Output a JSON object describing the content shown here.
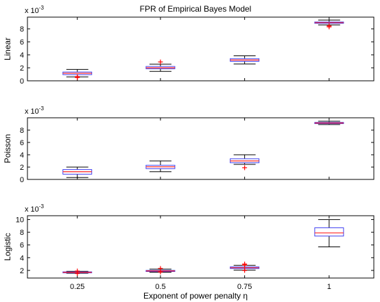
{
  "figure": {
    "title": "FPR of Empirical Bayes Model",
    "xlabel": "Exponent of power penalty η"
  },
  "chart_data": [
    {
      "type": "box",
      "title": "FPR of Empirical Bayes Model",
      "ylabel": "Linear",
      "scale_label": "x 10",
      "scale_exponent": "-3",
      "categories": [
        "0.25",
        "0.5",
        "0.75",
        "1"
      ],
      "ylim": [
        0,
        9.8
      ],
      "yticks": [
        0,
        2,
        4,
        6,
        8
      ],
      "show_xtick_labels": false,
      "boxes": [
        {
          "whisker_low": 0.6,
          "q1": 0.95,
          "median": 1.15,
          "q3": 1.35,
          "whisker_high": 1.75,
          "outliers": [
            0.5,
            0.65
          ]
        },
        {
          "whisker_low": 1.45,
          "q1": 1.85,
          "median": 2.0,
          "q3": 2.2,
          "whisker_high": 2.55,
          "outliers": [
            2.9
          ]
        },
        {
          "whisker_low": 2.6,
          "q1": 3.0,
          "median": 3.2,
          "q3": 3.4,
          "whisker_high": 3.85,
          "outliers": []
        },
        {
          "whisker_low": 8.6,
          "q1": 8.85,
          "median": 8.95,
          "q3": 9.05,
          "whisker_high": 9.35,
          "outliers": [
            8.3,
            8.45
          ]
        }
      ]
    },
    {
      "type": "box",
      "title": "",
      "ylabel": "Poisson",
      "scale_label": "x 10",
      "scale_exponent": "-3",
      "categories": [
        "0.25",
        "0.5",
        "0.75",
        "1"
      ],
      "ylim": [
        0,
        10
      ],
      "yticks": [
        0,
        2,
        4,
        6,
        8
      ],
      "show_xtick_labels": false,
      "boxes": [
        {
          "whisker_low": 0.3,
          "q1": 0.85,
          "median": 1.25,
          "q3": 1.6,
          "whisker_high": 2.0,
          "outliers": []
        },
        {
          "whisker_low": 1.25,
          "q1": 1.75,
          "median": 2.05,
          "q3": 2.3,
          "whisker_high": 3.0,
          "outliers": []
        },
        {
          "whisker_low": 2.45,
          "q1": 2.7,
          "median": 3.0,
          "q3": 3.35,
          "whisker_high": 4.0,
          "outliers": [
            1.9
          ]
        },
        {
          "whisker_low": 8.9,
          "q1": 9.05,
          "median": 9.15,
          "q3": 9.25,
          "whisker_high": 9.45,
          "outliers": []
        }
      ]
    },
    {
      "type": "box",
      "title": "",
      "ylabel": "Logistic",
      "scale_label": "x 10",
      "scale_exponent": "-3",
      "categories": [
        "0.25",
        "0.5",
        "0.75",
        "1"
      ],
      "ylim": [
        0.8,
        10.6
      ],
      "yticks": [
        2,
        4,
        6,
        8,
        10
      ],
      "show_xtick_labels": true,
      "boxes": [
        {
          "whisker_low": 1.55,
          "q1": 1.62,
          "median": 1.7,
          "q3": 1.77,
          "whisker_high": 1.85,
          "outliers": [
            1.5,
            1.9
          ]
        },
        {
          "whisker_low": 1.7,
          "q1": 1.82,
          "median": 1.92,
          "q3": 2.0,
          "whisker_high": 2.2,
          "outliers": [
            1.75,
            2.3
          ]
        },
        {
          "whisker_low": 2.05,
          "q1": 2.3,
          "median": 2.42,
          "q3": 2.55,
          "whisker_high": 2.8,
          "outliers": [
            2.0,
            2.85,
            3.0
          ]
        },
        {
          "whisker_low": 5.7,
          "q1": 7.4,
          "median": 7.9,
          "q3": 8.7,
          "whisker_high": 10.0,
          "outliers": []
        }
      ]
    }
  ]
}
